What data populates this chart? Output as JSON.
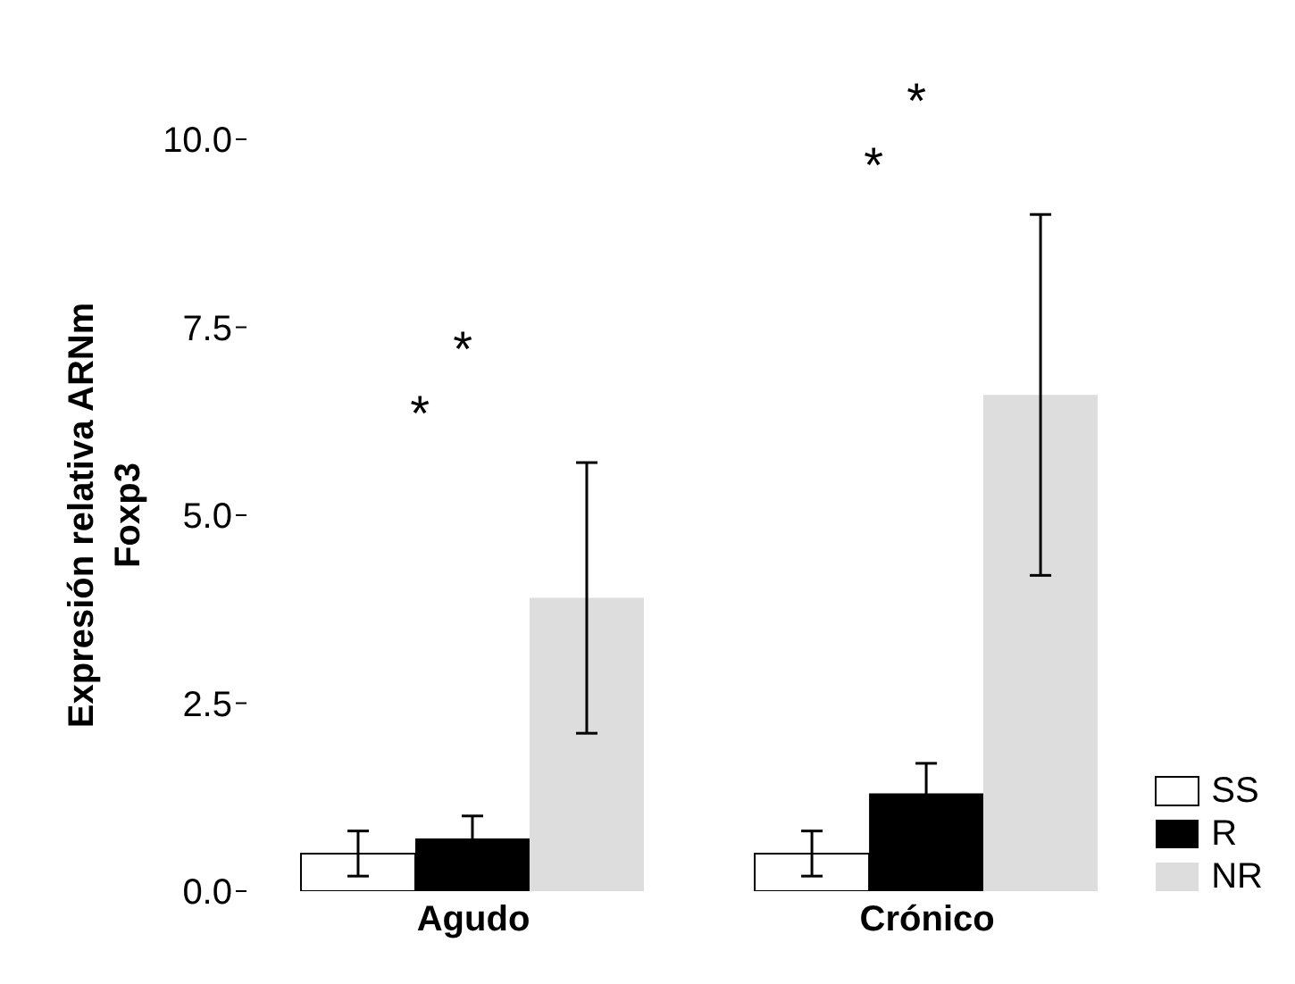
{
  "chart_data": {
    "type": "bar",
    "ylabel": "Expresión relativa ARNm Foxp3",
    "categories": [
      "Agudo",
      "Crónico"
    ],
    "series": [
      {
        "name": "SS",
        "color": "#ffffff",
        "values": [
          0.5,
          0.5
        ],
        "errors": [
          0.3,
          0.3
        ]
      },
      {
        "name": "R",
        "color": "#000000",
        "values": [
          0.7,
          1.3
        ],
        "errors": [
          0.3,
          0.4
        ]
      },
      {
        "name": "NR",
        "color": "#dddddd",
        "values": [
          3.9,
          6.6
        ],
        "errors": [
          1.8,
          2.4
        ]
      }
    ],
    "annotations": [
      "*",
      "*",
      "*",
      "*"
    ],
    "ylim": [
      0,
      10
    ],
    "yticks": [
      {
        "value": 0,
        "label": "0.0"
      },
      {
        "value": 2.5,
        "label": "2.5"
      },
      {
        "value": 5,
        "label": "5.0"
      },
      {
        "value": 7.5,
        "label": "7.5"
      },
      {
        "value": 10,
        "label": "10.0"
      }
    ],
    "grid": false,
    "legend": "bottom right"
  }
}
